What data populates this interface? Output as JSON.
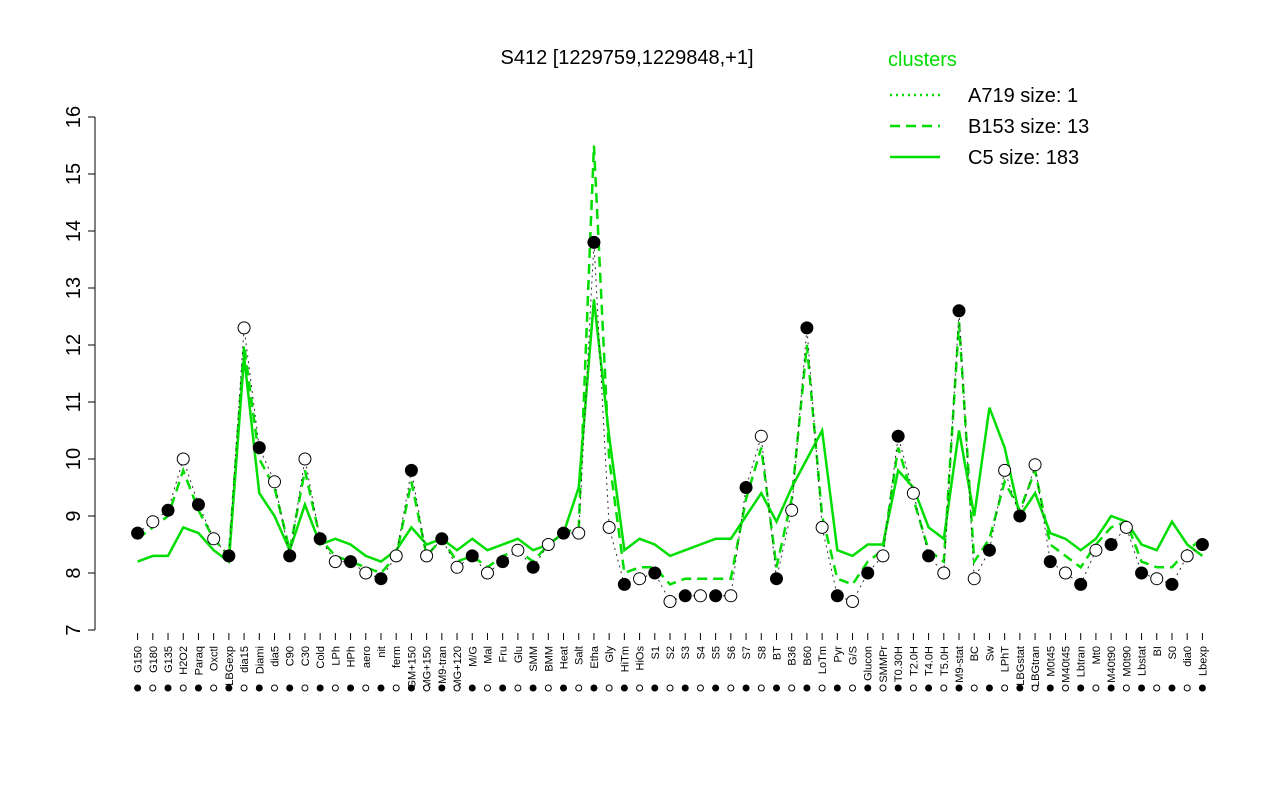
{
  "chart_data": {
    "type": "line",
    "title": "S412 [1229759,1229848,+1]",
    "legend_title": "clusters",
    "legend_position": "top-right",
    "categories": [
      "G150",
      "G180",
      "G135",
      "H2O2",
      "Paraq",
      "Oxctl",
      "LBGexp",
      "dia15",
      "Diami",
      "dia5",
      "C90",
      "C30",
      "Cold",
      "LPh",
      "HPh",
      "aero",
      "nit",
      "ferm",
      "GM+150",
      "MG+150",
      "M9-tran",
      "MG+120",
      "M/G",
      "Mal",
      "Fru",
      "Glu",
      "SMM",
      "BMM",
      "Heat",
      "Salt",
      "Etha",
      "Gly",
      "HiTm",
      "HiOs",
      "S1",
      "S2",
      "S3",
      "S4",
      "S5",
      "S6",
      "S7",
      "S8",
      "BT",
      "B36",
      "B60",
      "LoTm",
      "Pyr",
      "G/S",
      "Glucon",
      "SMMPr",
      "T0.30H",
      "T2.0H",
      "T4.0H",
      "T5.0H",
      "M9-stat",
      "BC",
      "Sw",
      "LPhT",
      "LBGstat",
      "LBGtran",
      "M0t45",
      "M40t45",
      "Lbtran",
      "Mt0",
      "M40t90",
      "M0t90",
      "Lbstat",
      "BI",
      "S0",
      "dia0",
      "Lbexp"
    ],
    "series": [
      {
        "name": "A719 size: 1",
        "color": "#00dd00",
        "style": "dotted",
        "points": true,
        "values": [
          8.7,
          8.9,
          9.1,
          10.0,
          9.2,
          8.6,
          8.3,
          12.3,
          10.2,
          9.6,
          8.3,
          10.0,
          8.6,
          8.2,
          8.2,
          8.0,
          7.9,
          8.3,
          9.8,
          8.3,
          8.6,
          8.1,
          8.3,
          8.0,
          8.2,
          8.4,
          8.1,
          8.5,
          8.7,
          8.7,
          13.8,
          8.8,
          7.8,
          7.9,
          8.0,
          7.5,
          7.6,
          7.6,
          7.6,
          7.6,
          9.5,
          10.4,
          7.9,
          9.1,
          12.3,
          8.8,
          7.6,
          7.5,
          8.0,
          8.3,
          10.4,
          9.4,
          8.3,
          8.0,
          12.6,
          7.9,
          8.4,
          9.8,
          9.0,
          9.9,
          8.2,
          8.0,
          7.8,
          8.4,
          8.5,
          8.8,
          8.0,
          7.9,
          7.8,
          8.3,
          8.5
        ]
      },
      {
        "name": "B153 size: 13",
        "color": "#00dd00",
        "style": "dashed",
        "points": false,
        "values": [
          8.6,
          8.8,
          9.0,
          9.8,
          9.1,
          8.6,
          8.3,
          12.0,
          10.0,
          9.5,
          8.4,
          9.8,
          8.6,
          8.3,
          8.2,
          8.1,
          8.0,
          8.3,
          9.6,
          8.3,
          8.6,
          8.2,
          8.3,
          8.1,
          8.3,
          8.4,
          8.2,
          8.5,
          8.7,
          8.8,
          15.5,
          10.0,
          8.0,
          8.1,
          8.1,
          7.8,
          7.9,
          7.9,
          7.9,
          7.9,
          9.3,
          10.2,
          8.1,
          9.3,
          12.0,
          9.0,
          7.9,
          7.8,
          8.2,
          8.4,
          10.2,
          9.3,
          8.4,
          8.2,
          12.4,
          8.2,
          8.6,
          9.6,
          9.1,
          9.8,
          8.5,
          8.3,
          8.1,
          8.5,
          8.8,
          8.9,
          8.2,
          8.1,
          8.1,
          8.4,
          8.6
        ]
      },
      {
        "name": "C5 size: 183",
        "color": "#00dd00",
        "style": "solid",
        "points": false,
        "values": [
          8.2,
          8.3,
          8.3,
          8.8,
          8.7,
          8.4,
          8.2,
          11.8,
          9.4,
          9.0,
          8.4,
          9.2,
          8.5,
          8.6,
          8.5,
          8.3,
          8.2,
          8.4,
          8.8,
          8.5,
          8.6,
          8.4,
          8.6,
          8.4,
          8.5,
          8.6,
          8.4,
          8.5,
          8.7,
          9.5,
          12.8,
          10.4,
          8.4,
          8.6,
          8.5,
          8.3,
          8.4,
          8.5,
          8.6,
          8.6,
          9.0,
          9.4,
          8.9,
          9.5,
          10.0,
          10.5,
          8.4,
          8.3,
          8.5,
          8.5,
          9.8,
          9.5,
          8.8,
          8.6,
          10.5,
          9.0,
          10.9,
          10.2,
          9.0,
          9.4,
          8.7,
          8.6,
          8.4,
          8.6,
          9.0,
          8.9,
          8.5,
          8.4,
          8.9,
          8.5,
          8.3
        ]
      }
    ],
    "ylim": [
      7,
      16
    ],
    "yticks": [
      7,
      8,
      9,
      10,
      11,
      12,
      13,
      14,
      15,
      16
    ]
  }
}
